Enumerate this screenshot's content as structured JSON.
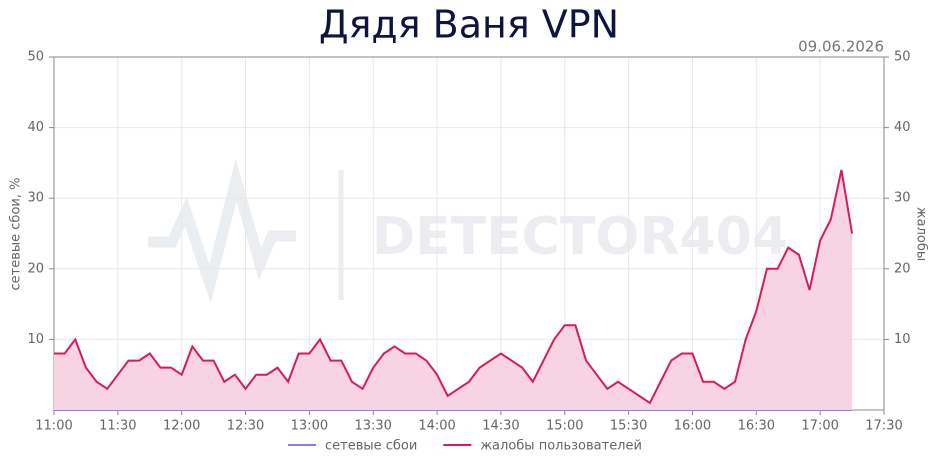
{
  "chart_data": {
    "type": "line",
    "title": "Дядя Ваня VPN",
    "date": "09.06.2026",
    "watermark": "DETECTOR404",
    "ylabel": "сетевые сбои, %",
    "y2label": "жалобы",
    "x": [
      "11:00",
      "11:05",
      "11:10",
      "11:15",
      "11:20",
      "11:25",
      "11:30",
      "11:35",
      "11:40",
      "11:45",
      "11:50",
      "11:55",
      "12:00",
      "12:05",
      "12:10",
      "12:15",
      "12:20",
      "12:25",
      "12:30",
      "12:35",
      "12:40",
      "12:45",
      "12:50",
      "12:55",
      "13:00",
      "13:05",
      "13:10",
      "13:15",
      "13:20",
      "13:25",
      "13:30",
      "13:35",
      "13:40",
      "13:45",
      "13:50",
      "13:55",
      "14:00",
      "14:05",
      "14:10",
      "14:15",
      "14:20",
      "14:25",
      "14:30",
      "14:35",
      "14:40",
      "14:45",
      "14:50",
      "14:55",
      "15:00",
      "15:05",
      "15:10",
      "15:15",
      "15:20",
      "15:25",
      "15:30",
      "15:35",
      "15:40",
      "15:45",
      "15:50",
      "15:55",
      "16:00",
      "16:05",
      "16:10",
      "16:15",
      "16:20",
      "16:25",
      "16:30",
      "16:35",
      "16:40",
      "16:45",
      "16:50",
      "16:55",
      "17:00",
      "17:05",
      "17:10",
      "17:15"
    ],
    "xlim": [
      "11:00",
      "17:30"
    ],
    "xticks": [
      "11:00",
      "11:30",
      "12:00",
      "12:30",
      "13:00",
      "13:30",
      "14:00",
      "14:30",
      "15:00",
      "15:30",
      "16:00",
      "16:30",
      "17:00",
      "17:30"
    ],
    "ylim": [
      0,
      50
    ],
    "yticks": [
      10,
      20,
      30,
      40,
      50
    ],
    "y2lim": [
      0,
      50
    ],
    "y2ticks": [
      10,
      20,
      30,
      40,
      50
    ],
    "grid": true,
    "legend": "bottom",
    "series": [
      {
        "name": "сетевые сбои",
        "color": "#8b7cf0",
        "values": [
          0,
          0,
          0,
          0,
          0,
          0,
          0,
          0,
          0,
          0,
          0,
          0,
          0,
          0,
          0,
          0,
          0,
          0,
          0,
          0,
          0,
          0,
          0,
          0,
          0,
          0,
          0,
          0,
          0,
          0,
          0,
          0,
          0,
          0,
          0,
          0,
          0,
          0,
          0,
          0,
          0,
          0,
          0,
          0,
          0,
          0,
          0,
          0,
          0,
          0,
          0,
          0,
          0,
          0,
          0,
          0,
          0,
          0,
          0,
          0,
          0,
          0,
          0,
          0,
          0,
          0,
          0,
          0,
          0,
          0,
          0,
          0,
          0,
          0,
          0,
          0
        ]
      },
      {
        "name": "жалобы пользователей",
        "color": "#d81b60",
        "fill": "#f8d3e1",
        "axis": "y2",
        "values": [
          8,
          8,
          10,
          6,
          4,
          3,
          5,
          7,
          7,
          8,
          6,
          6,
          5,
          9,
          7,
          7,
          4,
          5,
          3,
          5,
          5,
          6,
          4,
          8,
          8,
          10,
          7,
          7,
          4,
          3,
          6,
          8,
          9,
          8,
          8,
          7,
          5,
          2,
          3,
          4,
          6,
          7,
          8,
          7,
          6,
          4,
          7,
          10,
          12,
          12,
          7,
          5,
          3,
          4,
          3,
          2,
          1,
          4,
          7,
          8,
          8,
          4,
          4,
          3,
          4,
          10,
          14,
          20,
          20,
          23,
          22,
          17,
          24,
          27,
          34,
          25
        ]
      }
    ]
  }
}
